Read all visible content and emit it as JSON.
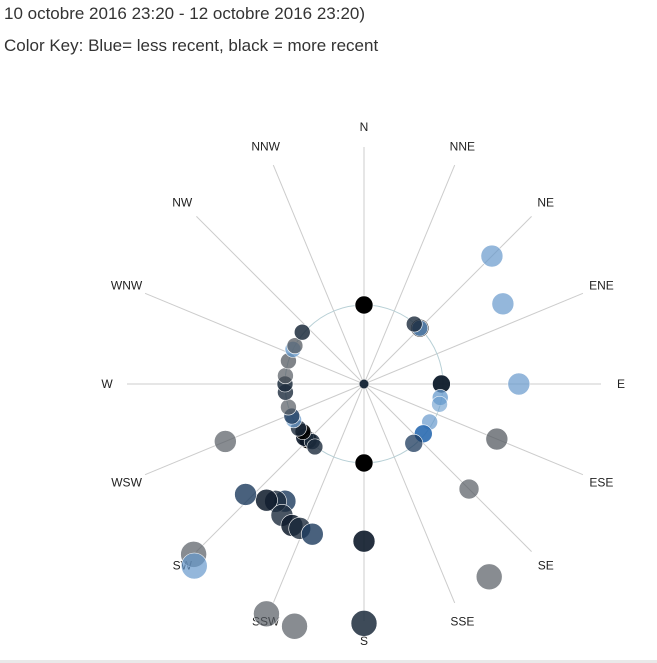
{
  "header": {
    "date_range": "10 octobre 2016 23:20 - 12 octobre 2016 23:20)",
    "color_key": "Color Key: Blue= less recent, black = more recent"
  },
  "chart_data": {
    "type": "scatter",
    "projection": "polar",
    "directions": [
      "N",
      "NNE",
      "NE",
      "ENE",
      "E",
      "ESE",
      "SE",
      "SSE",
      "S",
      "SSW",
      "SW",
      "WSW",
      "W",
      "WNW",
      "NW",
      "NNW"
    ],
    "colors": {
      "least_recent": "#6699cc",
      "most_recent": "#000000",
      "axis": "#cccccc",
      "ring": "#b8d0d6"
    },
    "legend": "Blue= less recent, black = more recent",
    "points": [
      {
        "dir": 0,
        "r": 1.0,
        "size": 9,
        "color": "#000000",
        "opacity": 1.0
      },
      {
        "dir": 0,
        "r": 1.0,
        "size": 9,
        "color": "#000000",
        "opacity": 1.0
      },
      {
        "dir": 180,
        "r": 1.0,
        "size": 9,
        "color": "#000000",
        "opacity": 1.0
      },
      {
        "dir": 180,
        "r": 1.99,
        "size": 11,
        "color": "#0d1a2a",
        "opacity": 0.9
      },
      {
        "dir": 180,
        "r": 3.03,
        "size": 13,
        "color": "#1c2b3c",
        "opacity": 0.85
      },
      {
        "dir": 45,
        "r": 1.0,
        "size": 9,
        "color": "#000000",
        "opacity": 1.0
      },
      {
        "dir": 45,
        "r": 1.0,
        "size": 8,
        "color": "#6699cc",
        "opacity": 0.8
      },
      {
        "dir": 40,
        "r": 0.99,
        "size": 8,
        "color": "#1c2b3c",
        "opacity": 0.8
      },
      {
        "dir": 45,
        "r": 2.29,
        "size": 11,
        "color": "#6699cc",
        "opacity": 0.7
      },
      {
        "dir": 60,
        "r": 2.03,
        "size": 11,
        "color": "#6699cc",
        "opacity": 0.7
      },
      {
        "dir": 90,
        "r": 0.98,
        "size": 9,
        "color": "#0d1a2a",
        "opacity": 0.95
      },
      {
        "dir": 90,
        "r": 1.96,
        "size": 11,
        "color": "#6699cc",
        "opacity": 0.7
      },
      {
        "dir": 100,
        "r": 0.98,
        "size": 8,
        "color": "#6699cc",
        "opacity": 0.75
      },
      {
        "dir": 105,
        "r": 0.99,
        "size": 8,
        "color": "#6699cc",
        "opacity": 0.6
      },
      {
        "dir": 120,
        "r": 0.96,
        "size": 8,
        "color": "#6699cc",
        "opacity": 0.7
      },
      {
        "dir": 130,
        "r": 0.98,
        "size": 9,
        "color": "#2a6ab0",
        "opacity": 0.9
      },
      {
        "dir": 140,
        "r": 0.98,
        "size": 9,
        "color": "#1c3a5c",
        "opacity": 0.75
      },
      {
        "dir": 112.5,
        "r": 1.82,
        "size": 11,
        "color": "#555b62",
        "opacity": 0.75
      },
      {
        "dir": 135,
        "r": 1.88,
        "size": 10,
        "color": "#555b62",
        "opacity": 0.7
      },
      {
        "dir": 147,
        "r": 2.91,
        "size": 13,
        "color": "#555b62",
        "opacity": 0.7
      },
      {
        "dir": 225,
        "r": 1.0,
        "size": 9,
        "color": "#000000",
        "opacity": 1.0
      },
      {
        "dir": 228,
        "r": 1.01,
        "size": 9,
        "color": "#0d1a2a",
        "opacity": 0.9
      },
      {
        "dir": 222,
        "r": 0.98,
        "size": 8,
        "color": "#1c2b3c",
        "opacity": 0.85
      },
      {
        "dir": 218,
        "r": 1.01,
        "size": 8,
        "color": "#1c2b3c",
        "opacity": 0.8
      },
      {
        "dir": 232,
        "r": 0.98,
        "size": 8,
        "color": "#000000",
        "opacity": 0.9
      },
      {
        "dir": 236,
        "r": 1.0,
        "size": 8,
        "color": "#1c2b3c",
        "opacity": 0.8
      },
      {
        "dir": 243,
        "r": 1.0,
        "size": 8,
        "color": "#6699cc",
        "opacity": 0.7
      },
      {
        "dir": 246,
        "r": 1.0,
        "size": 8,
        "color": "#1c3a5c",
        "opacity": 0.8
      },
      {
        "dir": 253,
        "r": 1.0,
        "size": 8,
        "color": "#555b62",
        "opacity": 0.7
      },
      {
        "dir": 264,
        "r": 1.0,
        "size": 8,
        "color": "#1c2b3c",
        "opacity": 0.8
      },
      {
        "dir": 270,
        "r": 1.0,
        "size": 8,
        "color": "#1c2b3c",
        "opacity": 0.85
      },
      {
        "dir": 276,
        "r": 1.0,
        "size": 8,
        "color": "#555b62",
        "opacity": 0.7
      },
      {
        "dir": 287,
        "r": 1.0,
        "size": 8,
        "color": "#555b62",
        "opacity": 0.75
      },
      {
        "dir": 296,
        "r": 1.0,
        "size": 8,
        "color": "#6699cc",
        "opacity": 0.75
      },
      {
        "dir": 299,
        "r": 1.0,
        "size": 8,
        "color": "#555b62",
        "opacity": 0.75
      },
      {
        "dir": 310,
        "r": 1.02,
        "size": 8,
        "color": "#1c2b3c",
        "opacity": 0.85
      },
      {
        "dir": 247.5,
        "r": 1.9,
        "size": 11,
        "color": "#555b62",
        "opacity": 0.7
      },
      {
        "dir": 214,
        "r": 1.79,
        "size": 11,
        "color": "#1c3a5c",
        "opacity": 0.8
      },
      {
        "dir": 217,
        "r": 1.86,
        "size": 11,
        "color": "#1c2b3c",
        "opacity": 0.8
      },
      {
        "dir": 220,
        "r": 1.92,
        "size": 11,
        "color": "#0d1a2a",
        "opacity": 0.85
      },
      {
        "dir": 212,
        "r": 1.96,
        "size": 11,
        "color": "#1c2b3c",
        "opacity": 0.8
      },
      {
        "dir": 207,
        "r": 2.01,
        "size": 11,
        "color": "#0d1a2a",
        "opacity": 0.85
      },
      {
        "dir": 204,
        "r": 2.0,
        "size": 11,
        "color": "#1c2b3c",
        "opacity": 0.8
      },
      {
        "dir": 199,
        "r": 2.01,
        "size": 11,
        "color": "#1c3a5c",
        "opacity": 0.8
      },
      {
        "dir": 227,
        "r": 2.05,
        "size": 11,
        "color": "#1c3a5c",
        "opacity": 0.8
      },
      {
        "dir": 225,
        "r": 3.05,
        "size": 13,
        "color": "#555b62",
        "opacity": 0.7
      },
      {
        "dir": 223,
        "r": 3.15,
        "size": 13,
        "color": "#6699cc",
        "opacity": 0.7
      },
      {
        "dir": 203,
        "r": 3.16,
        "size": 13,
        "color": "#555b62",
        "opacity": 0.7
      },
      {
        "dir": 196,
        "r": 3.19,
        "size": 13,
        "color": "#555b62",
        "opacity": 0.7
      }
    ]
  }
}
